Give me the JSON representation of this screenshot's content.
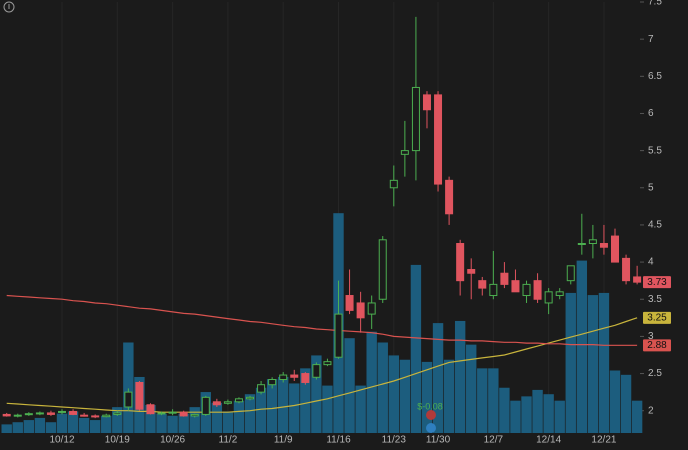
{
  "chart_data": {
    "type": "candlestick",
    "categories": [
      null,
      null,
      null,
      null,
      null,
      "10/12",
      null,
      null,
      null,
      null,
      "10/19",
      null,
      null,
      null,
      null,
      "10/26",
      null,
      null,
      null,
      null,
      "11/2",
      null,
      null,
      null,
      null,
      "11/9",
      null,
      null,
      null,
      null,
      "11/16",
      null,
      null,
      null,
      null,
      "11/23",
      null,
      null,
      null,
      "11/30",
      null,
      null,
      null,
      null,
      "12/7",
      null,
      null,
      null,
      null,
      "12/14",
      null,
      null,
      null,
      null,
      "12/21",
      null,
      null,
      null
    ],
    "open": [
      1.95,
      1.93,
      1.95,
      1.96,
      1.97,
      1.98,
      1.99,
      1.94,
      1.93,
      1.92,
      1.95,
      2.05,
      2.38,
      2.08,
      1.96,
      1.97,
      1.98,
      1.93,
      1.95,
      2.12,
      2.1,
      2.12,
      2.16,
      2.25,
      2.35,
      2.42,
      2.48,
      2.5,
      2.45,
      2.62,
      2.72,
      3.55,
      3.45,
      3.3,
      3.5,
      5.0,
      5.45,
      5.5,
      6.25,
      6.25,
      5.1,
      4.25,
      3.9,
      3.75,
      3.55,
      3.85,
      3.75,
      3.55,
      3.75,
      3.45,
      3.55,
      3.75,
      4.25,
      4.25,
      4.25,
      4.35,
      4.05,
      3.8
    ],
    "high": [
      1.97,
      1.96,
      1.98,
      1.99,
      2.0,
      2.02,
      2.02,
      1.97,
      1.95,
      1.96,
      2.0,
      2.3,
      2.4,
      2.1,
      1.99,
      2.02,
      2.0,
      1.96,
      2.2,
      2.16,
      2.15,
      2.18,
      2.2,
      2.4,
      2.45,
      2.52,
      2.55,
      2.52,
      2.65,
      2.7,
      3.75,
      3.9,
      3.6,
      3.55,
      4.35,
      5.3,
      5.9,
      7.3,
      6.3,
      6.3,
      5.15,
      4.3,
      4.05,
      3.8,
      4.15,
      4.0,
      3.9,
      3.75,
      3.85,
      3.65,
      3.65,
      3.95,
      4.65,
      4.5,
      4.5,
      4.45,
      4.1,
      3.95
    ],
    "low": [
      1.92,
      1.91,
      1.93,
      1.94,
      1.93,
      1.95,
      1.94,
      1.92,
      1.9,
      1.91,
      1.93,
      2.0,
      2.0,
      1.95,
      1.94,
      1.94,
      1.92,
      1.91,
      1.93,
      2.05,
      2.08,
      2.1,
      2.14,
      2.22,
      2.3,
      2.38,
      2.4,
      2.35,
      2.42,
      2.6,
      2.7,
      3.3,
      3.05,
      3.1,
      3.45,
      4.75,
      5.15,
      5.1,
      5.8,
      4.95,
      4.5,
      3.55,
      3.5,
      3.55,
      3.5,
      3.65,
      3.6,
      3.45,
      3.45,
      3.3,
      3.5,
      3.7,
      4.1,
      4.05,
      4.1,
      4.0,
      3.7,
      3.7
    ],
    "close": [
      1.93,
      1.94,
      1.96,
      1.97,
      1.95,
      1.99,
      1.95,
      1.93,
      1.92,
      1.94,
      1.97,
      2.25,
      2.02,
      1.96,
      1.97,
      1.98,
      1.93,
      1.95,
      2.18,
      2.08,
      2.12,
      2.16,
      2.18,
      2.35,
      2.42,
      2.48,
      2.45,
      2.38,
      2.62,
      2.66,
      3.3,
      3.35,
      3.25,
      3.45,
      4.3,
      5.1,
      5.5,
      6.35,
      6.05,
      5.05,
      4.65,
      3.75,
      3.85,
      3.65,
      3.7,
      3.7,
      3.6,
      3.7,
      3.5,
      3.6,
      3.6,
      3.95,
      4.25,
      4.3,
      4.2,
      4.0,
      3.75,
      3.73
    ],
    "volume": [
      0.4,
      0.5,
      0.6,
      0.7,
      0.5,
      0.9,
      1.0,
      0.7,
      0.6,
      0.8,
      1.2,
      4.2,
      2.6,
      1.3,
      0.9,
      0.8,
      0.9,
      1.2,
      1.9,
      1.4,
      1.0,
      1.5,
      1.8,
      2.1,
      2.5,
      2.6,
      2.3,
      3.0,
      3.6,
      2.2,
      10.2,
      4.4,
      2.2,
      4.7,
      4.2,
      3.6,
      3.4,
      7.8,
      3.3,
      5.1,
      3.4,
      5.2,
      4.1,
      3.0,
      3.0,
      2.1,
      1.5,
      1.7,
      2.0,
      1.8,
      1.5,
      6.5,
      8.0,
      6.4,
      6.5,
      2.9,
      2.7,
      1.5
    ],
    "up_color": "#4caf50",
    "down_color": "#e0555f",
    "volume_color": "#1c5d7e",
    "lines": [
      {
        "color": "#c8b43c",
        "values": [
          2.1,
          2.09,
          2.08,
          2.07,
          2.06,
          2.05,
          2.04,
          2.03,
          2.02,
          2.01,
          2.0,
          2.0,
          1.99,
          1.99,
          1.98,
          1.98,
          1.98,
          1.98,
          1.98,
          1.98,
          1.98,
          1.99,
          2.0,
          2.02,
          2.03,
          2.05,
          2.07,
          2.1,
          2.13,
          2.16,
          2.2,
          2.24,
          2.28,
          2.32,
          2.36,
          2.4,
          2.45,
          2.5,
          2.55,
          2.6,
          2.65,
          2.67,
          2.69,
          2.71,
          2.73,
          2.75,
          2.79,
          2.83,
          2.87,
          2.91,
          2.95,
          2.99,
          3.03,
          3.07,
          3.11,
          3.15,
          3.2,
          3.25
        ]
      },
      {
        "color": "#d9534f",
        "values": [
          3.55,
          3.54,
          3.53,
          3.52,
          3.51,
          3.5,
          3.48,
          3.47,
          3.45,
          3.44,
          3.42,
          3.4,
          3.38,
          3.37,
          3.35,
          3.33,
          3.31,
          3.3,
          3.28,
          3.26,
          3.24,
          3.22,
          3.2,
          3.19,
          3.17,
          3.15,
          3.13,
          3.12,
          3.1,
          3.09,
          3.08,
          3.07,
          3.06,
          3.05,
          3.03,
          3.0,
          2.99,
          2.98,
          2.97,
          2.96,
          2.95,
          2.95,
          2.94,
          2.94,
          2.93,
          2.92,
          2.92,
          2.91,
          2.91,
          2.9,
          2.9,
          2.89,
          2.89,
          2.89,
          2.88,
          2.88,
          2.88,
          2.88
        ]
      }
    ],
    "annotation": "$-0.08",
    "ylim": [
      1.7,
      7.5
    ],
    "yticks": [
      2,
      2.5,
      3,
      3.5,
      4,
      4.5,
      5,
      5.5,
      6,
      6.5,
      7,
      7.5
    ],
    "y2lim": [
      0,
      20
    ],
    "grid": true
  }
}
